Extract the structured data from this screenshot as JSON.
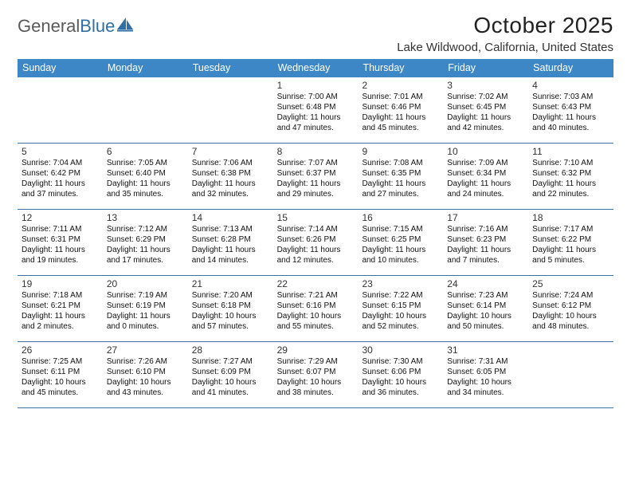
{
  "logo": {
    "text_gray": "General",
    "text_blue": "Blue"
  },
  "title": "October 2025",
  "location": "Lake Wildwood, California, United States",
  "colors": {
    "header_bg": "#3d87c7",
    "row_border": "#3d6fa0",
    "logo_gray": "#5a5a5a",
    "logo_blue": "#2f6fa7"
  },
  "day_names": [
    "Sunday",
    "Monday",
    "Tuesday",
    "Wednesday",
    "Thursday",
    "Friday",
    "Saturday"
  ],
  "weeks": [
    [
      null,
      null,
      null,
      {
        "n": "1",
        "sr": "Sunrise: 7:00 AM",
        "ss": "Sunset: 6:48 PM",
        "d1": "Daylight: 11 hours",
        "d2": "and 47 minutes."
      },
      {
        "n": "2",
        "sr": "Sunrise: 7:01 AM",
        "ss": "Sunset: 6:46 PM",
        "d1": "Daylight: 11 hours",
        "d2": "and 45 minutes."
      },
      {
        "n": "3",
        "sr": "Sunrise: 7:02 AM",
        "ss": "Sunset: 6:45 PM",
        "d1": "Daylight: 11 hours",
        "d2": "and 42 minutes."
      },
      {
        "n": "4",
        "sr": "Sunrise: 7:03 AM",
        "ss": "Sunset: 6:43 PM",
        "d1": "Daylight: 11 hours",
        "d2": "and 40 minutes."
      }
    ],
    [
      {
        "n": "5",
        "sr": "Sunrise: 7:04 AM",
        "ss": "Sunset: 6:42 PM",
        "d1": "Daylight: 11 hours",
        "d2": "and 37 minutes."
      },
      {
        "n": "6",
        "sr": "Sunrise: 7:05 AM",
        "ss": "Sunset: 6:40 PM",
        "d1": "Daylight: 11 hours",
        "d2": "and 35 minutes."
      },
      {
        "n": "7",
        "sr": "Sunrise: 7:06 AM",
        "ss": "Sunset: 6:38 PM",
        "d1": "Daylight: 11 hours",
        "d2": "and 32 minutes."
      },
      {
        "n": "8",
        "sr": "Sunrise: 7:07 AM",
        "ss": "Sunset: 6:37 PM",
        "d1": "Daylight: 11 hours",
        "d2": "and 29 minutes."
      },
      {
        "n": "9",
        "sr": "Sunrise: 7:08 AM",
        "ss": "Sunset: 6:35 PM",
        "d1": "Daylight: 11 hours",
        "d2": "and 27 minutes."
      },
      {
        "n": "10",
        "sr": "Sunrise: 7:09 AM",
        "ss": "Sunset: 6:34 PM",
        "d1": "Daylight: 11 hours",
        "d2": "and 24 minutes."
      },
      {
        "n": "11",
        "sr": "Sunrise: 7:10 AM",
        "ss": "Sunset: 6:32 PM",
        "d1": "Daylight: 11 hours",
        "d2": "and 22 minutes."
      }
    ],
    [
      {
        "n": "12",
        "sr": "Sunrise: 7:11 AM",
        "ss": "Sunset: 6:31 PM",
        "d1": "Daylight: 11 hours",
        "d2": "and 19 minutes."
      },
      {
        "n": "13",
        "sr": "Sunrise: 7:12 AM",
        "ss": "Sunset: 6:29 PM",
        "d1": "Daylight: 11 hours",
        "d2": "and 17 minutes."
      },
      {
        "n": "14",
        "sr": "Sunrise: 7:13 AM",
        "ss": "Sunset: 6:28 PM",
        "d1": "Daylight: 11 hours",
        "d2": "and 14 minutes."
      },
      {
        "n": "15",
        "sr": "Sunrise: 7:14 AM",
        "ss": "Sunset: 6:26 PM",
        "d1": "Daylight: 11 hours",
        "d2": "and 12 minutes."
      },
      {
        "n": "16",
        "sr": "Sunrise: 7:15 AM",
        "ss": "Sunset: 6:25 PM",
        "d1": "Daylight: 11 hours",
        "d2": "and 10 minutes."
      },
      {
        "n": "17",
        "sr": "Sunrise: 7:16 AM",
        "ss": "Sunset: 6:23 PM",
        "d1": "Daylight: 11 hours",
        "d2": "and 7 minutes."
      },
      {
        "n": "18",
        "sr": "Sunrise: 7:17 AM",
        "ss": "Sunset: 6:22 PM",
        "d1": "Daylight: 11 hours",
        "d2": "and 5 minutes."
      }
    ],
    [
      {
        "n": "19",
        "sr": "Sunrise: 7:18 AM",
        "ss": "Sunset: 6:21 PM",
        "d1": "Daylight: 11 hours",
        "d2": "and 2 minutes."
      },
      {
        "n": "20",
        "sr": "Sunrise: 7:19 AM",
        "ss": "Sunset: 6:19 PM",
        "d1": "Daylight: 11 hours",
        "d2": "and 0 minutes."
      },
      {
        "n": "21",
        "sr": "Sunrise: 7:20 AM",
        "ss": "Sunset: 6:18 PM",
        "d1": "Daylight: 10 hours",
        "d2": "and 57 minutes."
      },
      {
        "n": "22",
        "sr": "Sunrise: 7:21 AM",
        "ss": "Sunset: 6:16 PM",
        "d1": "Daylight: 10 hours",
        "d2": "and 55 minutes."
      },
      {
        "n": "23",
        "sr": "Sunrise: 7:22 AM",
        "ss": "Sunset: 6:15 PM",
        "d1": "Daylight: 10 hours",
        "d2": "and 52 minutes."
      },
      {
        "n": "24",
        "sr": "Sunrise: 7:23 AM",
        "ss": "Sunset: 6:14 PM",
        "d1": "Daylight: 10 hours",
        "d2": "and 50 minutes."
      },
      {
        "n": "25",
        "sr": "Sunrise: 7:24 AM",
        "ss": "Sunset: 6:12 PM",
        "d1": "Daylight: 10 hours",
        "d2": "and 48 minutes."
      }
    ],
    [
      {
        "n": "26",
        "sr": "Sunrise: 7:25 AM",
        "ss": "Sunset: 6:11 PM",
        "d1": "Daylight: 10 hours",
        "d2": "and 45 minutes."
      },
      {
        "n": "27",
        "sr": "Sunrise: 7:26 AM",
        "ss": "Sunset: 6:10 PM",
        "d1": "Daylight: 10 hours",
        "d2": "and 43 minutes."
      },
      {
        "n": "28",
        "sr": "Sunrise: 7:27 AM",
        "ss": "Sunset: 6:09 PM",
        "d1": "Daylight: 10 hours",
        "d2": "and 41 minutes."
      },
      {
        "n": "29",
        "sr": "Sunrise: 7:29 AM",
        "ss": "Sunset: 6:07 PM",
        "d1": "Daylight: 10 hours",
        "d2": "and 38 minutes."
      },
      {
        "n": "30",
        "sr": "Sunrise: 7:30 AM",
        "ss": "Sunset: 6:06 PM",
        "d1": "Daylight: 10 hours",
        "d2": "and 36 minutes."
      },
      {
        "n": "31",
        "sr": "Sunrise: 7:31 AM",
        "ss": "Sunset: 6:05 PM",
        "d1": "Daylight: 10 hours",
        "d2": "and 34 minutes."
      },
      null
    ]
  ]
}
